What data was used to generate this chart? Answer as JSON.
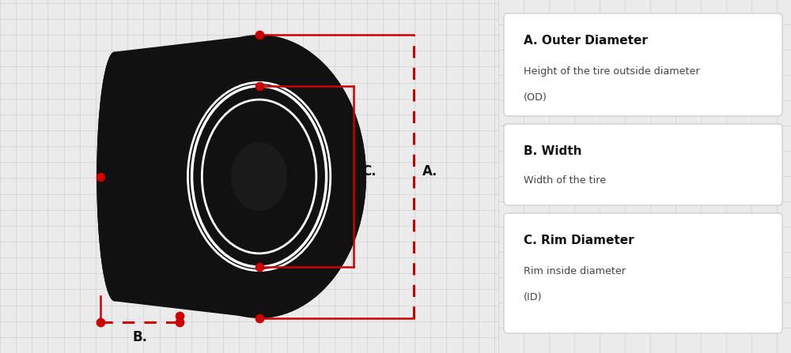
{
  "bg_color": "#ebebeb",
  "tire_color": "#111111",
  "red_color": "#cc0000",
  "white_color": "#ffffff",
  "grid_color": "#d0d0d0",
  "box_border_color": "#cccccc",
  "text_color": "#111111",
  "desc_color": "#444444",
  "label_A": "A.",
  "label_B": "B.",
  "label_C": "C.",
  "title_A": "A. Outer Diameter",
  "desc_A1": "Height of the tire outside diameter",
  "desc_A2": "(OD)",
  "title_B": "B. Width",
  "desc_B": "Width of the tire",
  "title_C": "C. Rim Diameter",
  "desc_C1": "Rim inside diameter",
  "desc_C2": "(ID)",
  "figsize": [
    10.0,
    4.47
  ]
}
